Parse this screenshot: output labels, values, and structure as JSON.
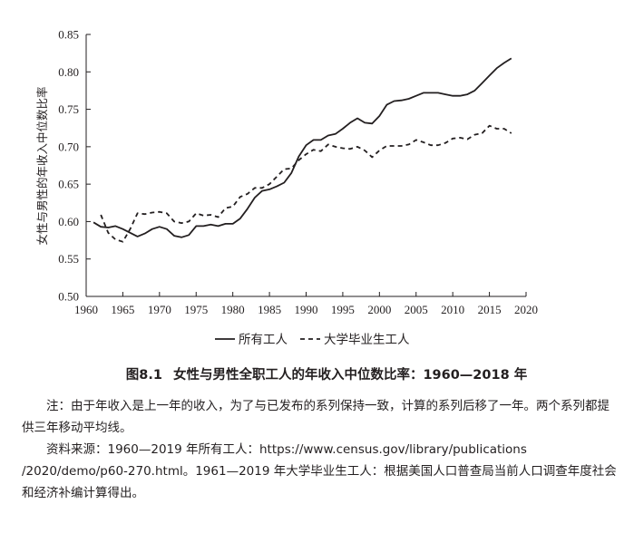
{
  "chart_data": {
    "type": "line",
    "ylabel": "女性与男性的年收入中位数比率",
    "xlabel": "",
    "xlim": [
      1960,
      2020
    ],
    "ylim": [
      0.5,
      0.85
    ],
    "x_ticks": [
      "1960",
      "1965",
      "1970",
      "1975",
      "1980",
      "1985",
      "1990",
      "1995",
      "2000",
      "2005",
      "2010",
      "2015",
      "2020"
    ],
    "y_ticks": [
      "0.50",
      "0.55",
      "0.60",
      "0.65",
      "0.70",
      "0.75",
      "0.80",
      "0.85"
    ],
    "legend_position": "bottom",
    "series": [
      {
        "name": "所有工人",
        "style": "solid",
        "color": "#231f20",
        "x": [
          1961,
          1962,
          1963,
          1964,
          1965,
          1966,
          1967,
          1968,
          1969,
          1970,
          1971,
          1972,
          1973,
          1974,
          1975,
          1976,
          1977,
          1978,
          1979,
          1980,
          1981,
          1982,
          1983,
          1984,
          1985,
          1986,
          1987,
          1988,
          1989,
          1990,
          1991,
          1992,
          1993,
          1994,
          1995,
          1996,
          1997,
          1998,
          1999,
          2000,
          2001,
          2002,
          2003,
          2004,
          2005,
          2006,
          2007,
          2008,
          2009,
          2010,
          2011,
          2012,
          2013,
          2014,
          2015,
          2016,
          2017,
          2018
        ],
        "values": [
          0.599,
          0.593,
          0.592,
          0.594,
          0.59,
          0.585,
          0.58,
          0.584,
          0.59,
          0.593,
          0.59,
          0.581,
          0.579,
          0.582,
          0.594,
          0.594,
          0.596,
          0.594,
          0.597,
          0.597,
          0.604,
          0.617,
          0.632,
          0.641,
          0.643,
          0.647,
          0.652,
          0.665,
          0.687,
          0.702,
          0.709,
          0.709,
          0.715,
          0.717,
          0.724,
          0.732,
          0.738,
          0.732,
          0.731,
          0.741,
          0.756,
          0.761,
          0.762,
          0.764,
          0.768,
          0.772,
          0.772,
          0.772,
          0.77,
          0.768,
          0.768,
          0.77,
          0.775,
          0.785,
          0.795,
          0.805,
          0.812,
          0.818
        ]
      },
      {
        "name": "大学毕业生工人",
        "style": "dashed",
        "color": "#231f20",
        "x": [
          1962,
          1963,
          1964,
          1965,
          1966,
          1967,
          1968,
          1969,
          1970,
          1971,
          1972,
          1973,
          1974,
          1975,
          1976,
          1977,
          1978,
          1979,
          1980,
          1981,
          1982,
          1983,
          1984,
          1985,
          1986,
          1987,
          1988,
          1989,
          1990,
          1991,
          1992,
          1993,
          1994,
          1995,
          1996,
          1997,
          1998,
          1999,
          2000,
          2001,
          2002,
          2003,
          2004,
          2005,
          2006,
          2007,
          2008,
          2009,
          2010,
          2011,
          2012,
          2013,
          2014,
          2015,
          2016,
          2017,
          2018
        ],
        "values": [
          0.609,
          0.585,
          0.576,
          0.573,
          0.59,
          0.611,
          0.61,
          0.612,
          0.613,
          0.611,
          0.6,
          0.598,
          0.6,
          0.611,
          0.608,
          0.609,
          0.606,
          0.618,
          0.62,
          0.633,
          0.637,
          0.645,
          0.645,
          0.65,
          0.66,
          0.67,
          0.671,
          0.682,
          0.69,
          0.696,
          0.694,
          0.703,
          0.7,
          0.698,
          0.697,
          0.7,
          0.695,
          0.686,
          0.695,
          0.701,
          0.701,
          0.701,
          0.703,
          0.709,
          0.706,
          0.702,
          0.702,
          0.705,
          0.711,
          0.712,
          0.71,
          0.716,
          0.718,
          0.728,
          0.724,
          0.724,
          0.718
        ]
      }
    ]
  },
  "legend": [
    {
      "label": "所有工人",
      "style": "solid"
    },
    {
      "label": "大学毕业生工人",
      "style": "dashed"
    }
  ],
  "caption": {
    "number": "图8.1",
    "title": "女性与男性全职工人的年收入中位数比率：1960—2018 年"
  },
  "note": "注：由于年收入是上一年的收入，为了与已发布的系列保持一致，计算的系列后移了一年。两个系列都提供三年移动平均线。",
  "source": "资料来源：1960—2019 年所有工人：https://www.census.gov/library/publications /2020/demo/p60-270.html。1961—2019 年大学毕业生工人：根据美国人口普查局当前人口调查年度社会和经济补编计算得出。"
}
